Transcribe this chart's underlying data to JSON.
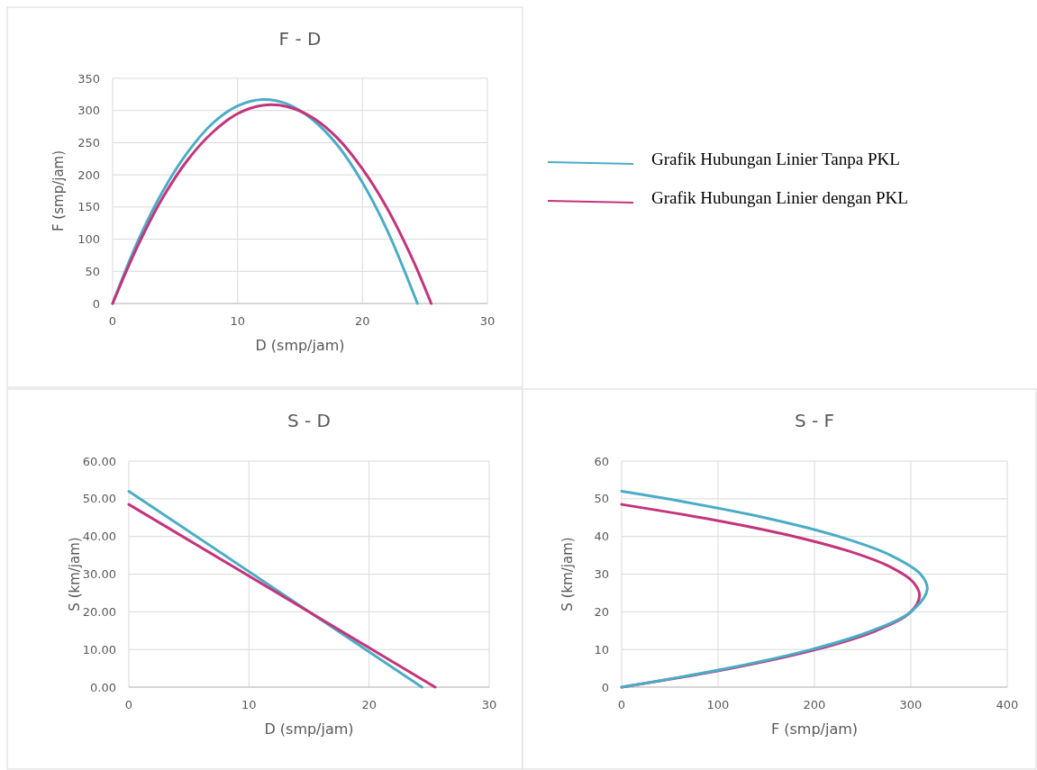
{
  "chart_data": [
    {
      "type": "line",
      "title": "F - D",
      "xlabel": "D (smp/jam)",
      "ylabel": "F (smp/jam)",
      "xlim": [
        0,
        30
      ],
      "xticks": [
        0,
        10,
        20,
        30
      ],
      "ylim": [
        0,
        350
      ],
      "yticks": [
        0,
        50,
        100,
        150,
        200,
        250,
        300,
        350
      ],
      "grid": true,
      "legend": "right",
      "series": [
        {
          "name": "Grafik Hubungan Linier Tanpa PKL",
          "color": "#4bacc6",
          "x": [
            0,
            2,
            4,
            6,
            8,
            10,
            12,
            14,
            16,
            18,
            20,
            22,
            24.4
          ],
          "values": [
            0,
            96,
            174,
            235,
            280,
            307,
            317,
            310,
            286,
            246,
            188,
            113,
            0
          ]
        },
        {
          "name": "Grafik Hubungan Linier dengan PKL",
          "color": "#c4347a",
          "x": [
            0,
            2,
            4,
            6,
            8,
            10,
            12,
            14,
            16,
            18,
            20,
            22,
            24,
            25.5
          ],
          "values": [
            0,
            89,
            164,
            223,
            266,
            295,
            308,
            306,
            289,
            257,
            209,
            147,
            69,
            0
          ]
        }
      ]
    },
    {
      "type": "line",
      "title": "S - D",
      "xlabel": "D (smp/jam)",
      "ylabel": "S (km/jam)",
      "xlim": [
        0,
        30
      ],
      "xticks": [
        0,
        10,
        20,
        30
      ],
      "ylim": [
        0,
        60
      ],
      "yticks": [
        {
          "value": 0,
          "label": "0.00"
        },
        {
          "value": 10,
          "label": "10.00"
        },
        {
          "value": 20,
          "label": "20.00"
        },
        {
          "value": 30,
          "label": "30.00"
        },
        {
          "value": 40,
          "label": "40.00"
        },
        {
          "value": 50,
          "label": "50.00"
        },
        {
          "value": 60,
          "label": "60.00"
        }
      ],
      "grid": true,
      "series": [
        {
          "color": "#4bacc6",
          "x": [
            0,
            24.4
          ],
          "values": [
            52,
            0
          ]
        },
        {
          "color": "#c4347a",
          "x": [
            0,
            25.5
          ],
          "values": [
            48.5,
            0
          ]
        }
      ]
    },
    {
      "type": "line",
      "title": "S - F",
      "xlabel": "F (smp/jam)",
      "ylabel": "S (km/jam)",
      "xlim": [
        0,
        400
      ],
      "xticks": [
        0,
        100,
        200,
        300,
        400
      ],
      "ylim": [
        0,
        60
      ],
      "yticks": [
        0,
        10,
        20,
        30,
        40,
        50,
        60
      ],
      "grid": true,
      "series": [
        {
          "color": "#c4347a",
          "x": [
            0,
            114,
            202,
            264,
            300,
            309,
            302,
            278,
            237,
            179,
            104,
            0
          ],
          "values": [
            0,
            5,
            10,
            15,
            20,
            24.3,
            28,
            32,
            36,
            40,
            44,
            48.5
          ]
        },
        {
          "color": "#4bacc6",
          "x": [
            0,
            110,
            197,
            260,
            300,
            317,
            310,
            279,
            225,
            148,
            47,
            0
          ],
          "values": [
            0,
            5,
            10,
            15,
            20,
            26,
            30,
            35,
            40,
            45,
            50,
            52
          ]
        }
      ]
    }
  ]
}
